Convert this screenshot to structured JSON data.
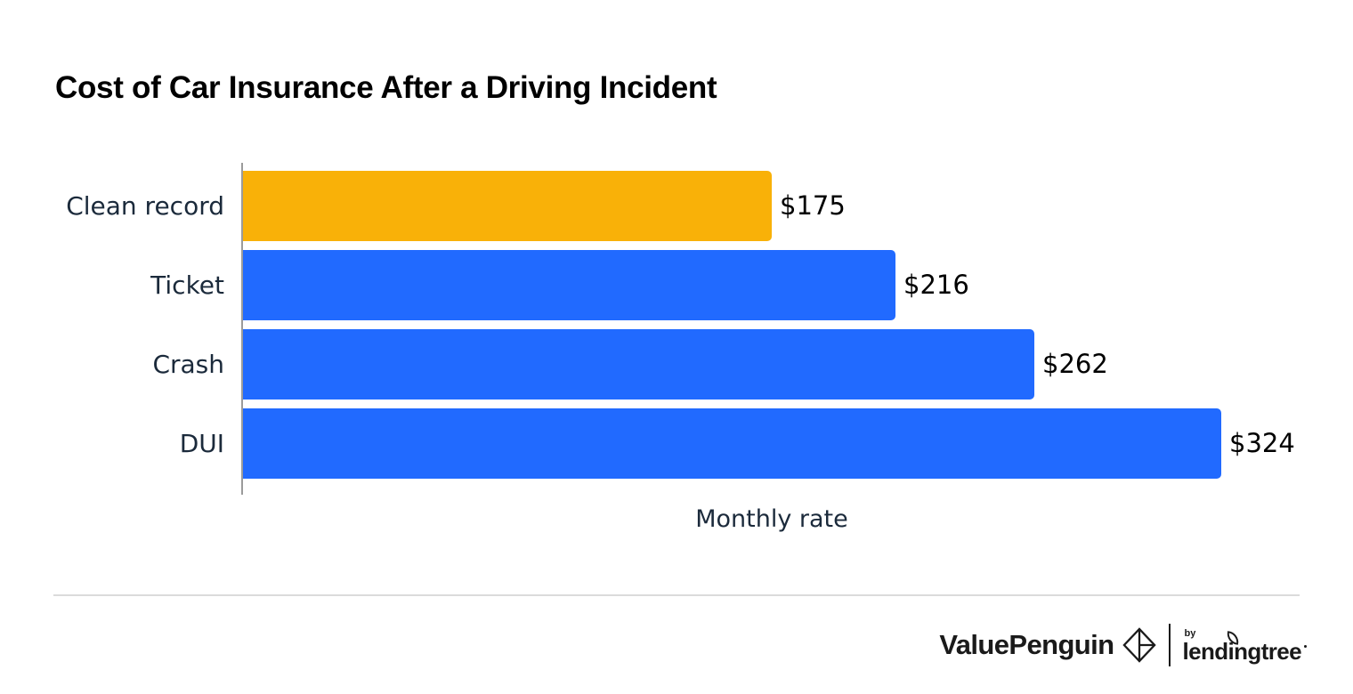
{
  "title": "Cost of Car Insurance After a Driving Incident",
  "chart_data": {
    "type": "bar",
    "orientation": "horizontal",
    "title": "Cost of Car Insurance After a Driving Incident",
    "categories": [
      "Clean record",
      "Ticket",
      "Crash",
      "DUI"
    ],
    "values": [
      175,
      216,
      262,
      324
    ],
    "value_labels": [
      "$175",
      "$216",
      "$262",
      "$324"
    ],
    "xlabel": "Monthly rate",
    "ylabel": "",
    "xlim": [
      0,
      324
    ],
    "grid": false,
    "legend_position": "none",
    "bar_colors": [
      "#F9B108",
      "#216AFF",
      "#216AFF",
      "#216AFF"
    ]
  },
  "footer": {
    "brand": "ValuePenguin",
    "byline": "by",
    "parent_brand": "lendingtree"
  },
  "colors": {
    "background": "#FFFFFF",
    "title_text": "#000000",
    "category_text": "#1B2A3B",
    "value_text": "#000000",
    "axis_line": "#9B9B9B",
    "divider": "#DBDBDB",
    "footer_text": "#1A1A1A",
    "highlight_bar": "#F9B108",
    "default_bar": "#216AFF"
  }
}
